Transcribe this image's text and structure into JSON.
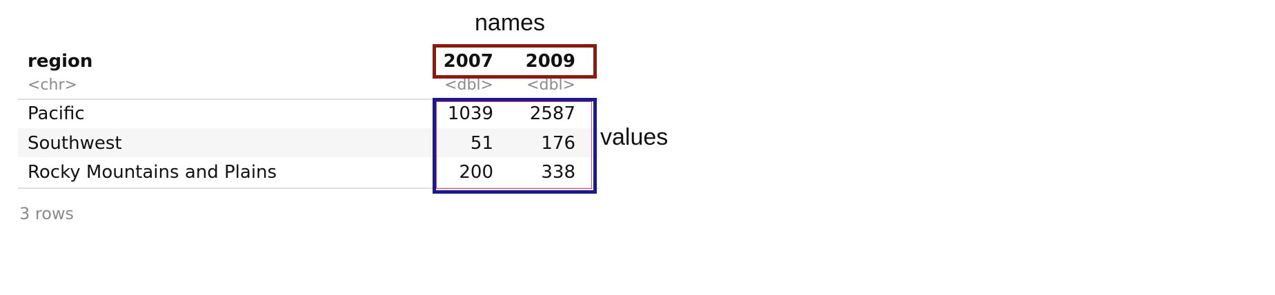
{
  "annotations": {
    "names_label": "names",
    "values_label": "values",
    "names_box_color": "#8b1a10",
    "values_box_color": "#1a1a8c"
  },
  "table": {
    "columns": [
      {
        "name": "region",
        "type": "<chr>"
      },
      {
        "name": "2007",
        "type": "<dbl>"
      },
      {
        "name": "2009",
        "type": "<dbl>"
      }
    ],
    "rows": [
      {
        "region": "Pacific",
        "2007": "1039",
        "2009": "2587"
      },
      {
        "region": "Southwest",
        "2007": "51",
        "2009": "176"
      },
      {
        "region": "Rocky Mountains and Plains",
        "2007": "200",
        "2009": "338"
      }
    ],
    "footer": "3 rows"
  }
}
